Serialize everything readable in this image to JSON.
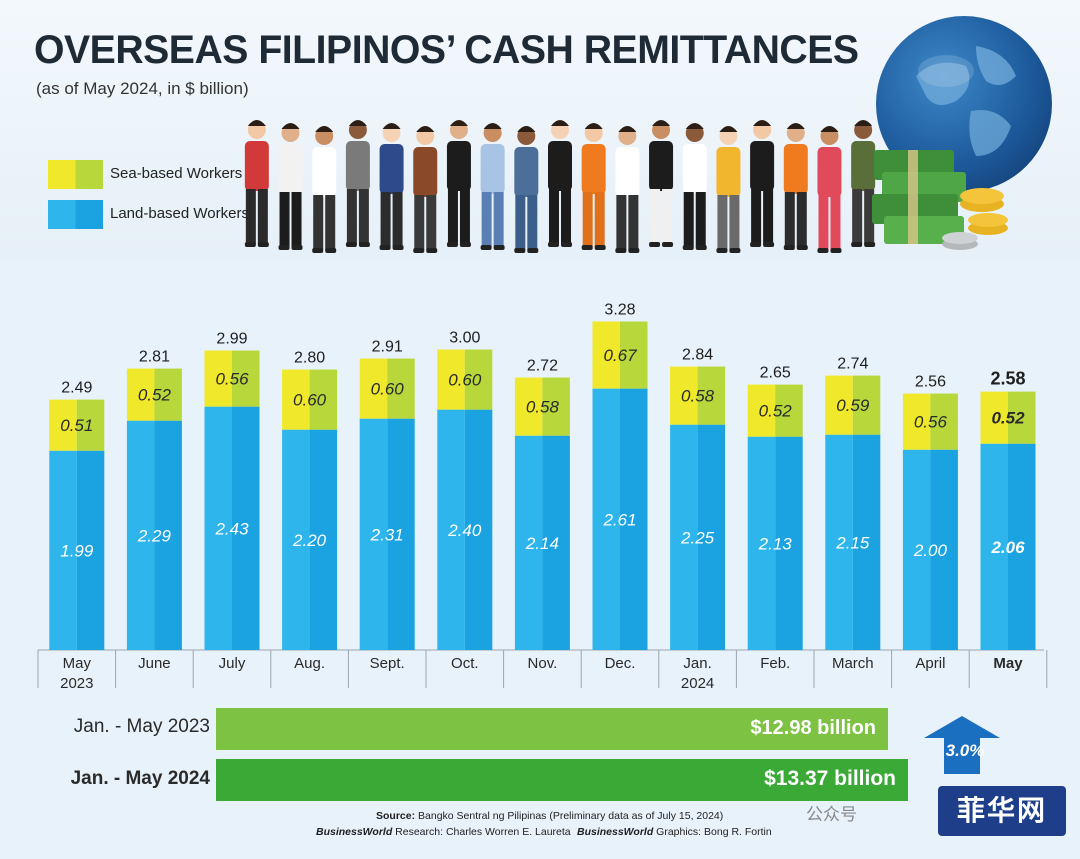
{
  "header": {
    "title": "OVERSEAS FILIPINOS’ CASH REMITTANCES",
    "subtitle": "(as of May 2024, in $ billion)"
  },
  "legend": {
    "sea": "Sea-based Workers",
    "land": "Land-based Workers"
  },
  "colors": {
    "sea_left": "#f0e82a",
    "sea_right": "#b8d73a",
    "land_left": "#2db5ec",
    "land_right": "#1aa3e0",
    "period_2023": "#7dc242",
    "period_2024": "#3aa936",
    "growth": "#1a6fc0"
  },
  "chart_data": {
    "type": "bar",
    "stacked": true,
    "categories": [
      "May\n2023",
      "June",
      "July",
      "Aug.",
      "Sept.",
      "Oct.",
      "Nov.",
      "Dec.",
      "Jan.\n2024",
      "Feb.",
      "March",
      "April",
      "May"
    ],
    "series": [
      {
        "name": "Land-based Workers",
        "values": [
          1.99,
          2.29,
          2.43,
          2.2,
          2.31,
          2.4,
          2.14,
          2.61,
          2.25,
          2.13,
          2.15,
          2.0,
          2.06
        ]
      },
      {
        "name": "Sea-based Workers",
        "values": [
          0.51,
          0.52,
          0.56,
          0.6,
          0.6,
          0.6,
          0.58,
          0.67,
          0.58,
          0.52,
          0.59,
          0.56,
          0.52
        ]
      }
    ],
    "totals": [
      2.49,
      2.81,
      2.99,
      2.8,
      2.91,
      3.0,
      2.72,
      3.28,
      2.84,
      2.65,
      2.74,
      2.56,
      2.58
    ],
    "land_labels": [
      "1.99",
      "2.29",
      "2.43",
      "2.20",
      "2.31",
      "2.40",
      "2.14",
      "2.61",
      "2.25",
      "2.13",
      "2.15",
      "2.00",
      "2.06"
    ],
    "sea_labels": [
      "0.51",
      "0.52",
      "0.56",
      "0.60",
      "0.60",
      "0.60",
      "0.58",
      "0.67",
      "0.58",
      "0.52",
      "0.59",
      "0.56",
      "0.52"
    ],
    "total_labels": [
      "2.49",
      "2.81",
      "2.99",
      "2.80",
      "2.91",
      "3.00",
      "2.72",
      "3.28",
      "2.84",
      "2.65",
      "2.74",
      "2.56",
      "2.58"
    ],
    "highlight_last": true,
    "ylim": [
      0,
      3.28
    ],
    "grid": false
  },
  "periods": [
    {
      "label": "Jan. - May 2023",
      "value": "$12.98 billion",
      "amount": 12.98
    },
    {
      "label": "Jan. - May 2024",
      "value": "$13.37 billion",
      "amount": 13.37
    }
  ],
  "growth": "3.0%",
  "footer": {
    "source_label": "Source:",
    "source": "Bangko Sentral ng Pilipinas (Preliminary data as of July 15, 2024)",
    "research_brand": "BusinessWorld",
    "research": "Research: Charles Worren E. Laureta",
    "graphics_brand": "BusinessWorld",
    "graphics": "Graphics: Bong R. Fortin"
  },
  "watermark": {
    "text": "公众号",
    "logo": "菲华网"
  }
}
